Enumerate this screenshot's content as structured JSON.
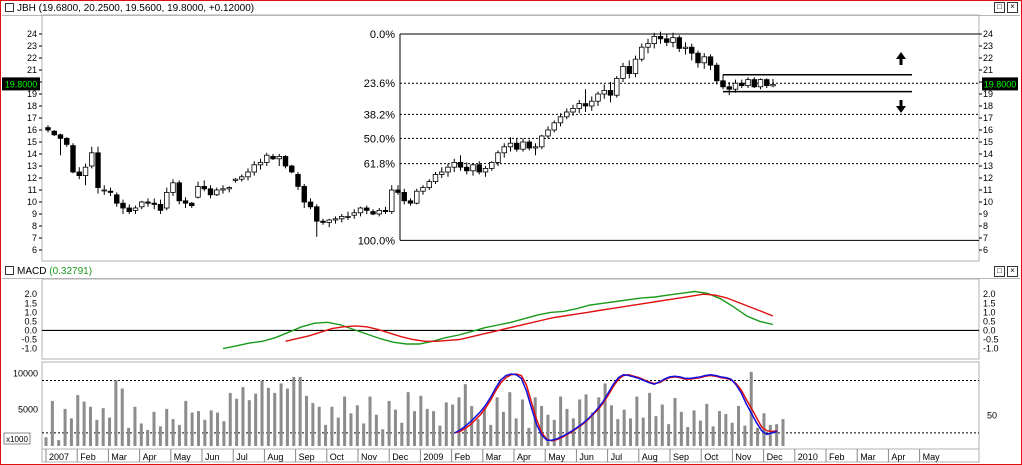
{
  "colors": {
    "frame": "#e01010",
    "macd": "#1a9a1a",
    "signal": "#e01010",
    "blue": "#1010e0",
    "volume": "#8c8c8c",
    "price_box": "#000000",
    "price_text": "#00ff00"
  },
  "price_panel": {
    "title": "JBH (19.6800, 20.2500, 19.5600, 19.8000, +0.12000)",
    "last_price": "19.8000"
  },
  "macd_panel": {
    "title": "MACD",
    "value": "(0.32791)"
  },
  "volume_panel": {
    "multiplier": "x1000"
  },
  "chart_data": [
    {
      "type": "candlestick",
      "name": "JBH",
      "ylim": [
        5.5,
        24.5
      ],
      "yticks": [
        6,
        7,
        8,
        9,
        10,
        11,
        12,
        13,
        14,
        15,
        16,
        17,
        18,
        19,
        20,
        21,
        22,
        23,
        24
      ],
      "x_months": [
        "2007",
        "Feb",
        "Mar",
        "Apr",
        "May",
        "Jun",
        "Jul",
        "Aug",
        "Sep",
        "Oct",
        "Nov",
        "Dec",
        "2009",
        "Feb",
        "Mar",
        "Apr",
        "May",
        "Jun",
        "Jul",
        "Aug",
        "Sep",
        "Oct",
        "Nov",
        "Dec",
        "2010",
        "Feb",
        "Mar",
        "Apr",
        "May"
      ],
      "candles": [
        [
          16.2,
          16.4,
          15.8,
          16.0
        ],
        [
          15.9,
          16.0,
          15.5,
          15.6
        ],
        [
          15.6,
          15.7,
          13.9,
          15.3
        ],
        [
          15.3,
          15.4,
          14.6,
          14.8
        ],
        [
          14.7,
          14.9,
          12.4,
          12.5
        ],
        [
          12.5,
          12.9,
          11.9,
          12.2
        ],
        [
          12.2,
          13.2,
          11.4,
          12.9
        ],
        [
          13.0,
          14.6,
          12.8,
          14.1
        ],
        [
          14.1,
          14.6,
          10.7,
          11.2
        ],
        [
          11.0,
          11.4,
          10.6,
          11.0
        ],
        [
          10.9,
          11.2,
          10.5,
          10.8
        ],
        [
          10.6,
          10.8,
          9.6,
          9.9
        ],
        [
          9.9,
          10.2,
          9.0,
          9.5
        ],
        [
          9.5,
          9.8,
          9.0,
          9.2
        ],
        [
          9.3,
          9.7,
          9.0,
          9.5
        ],
        [
          9.6,
          10.1,
          9.4,
          10.0
        ],
        [
          10.0,
          10.3,
          9.6,
          9.9
        ],
        [
          9.9,
          10.3,
          9.4,
          9.8
        ],
        [
          9.8,
          10.2,
          9.0,
          9.3
        ],
        [
          9.5,
          11.2,
          9.3,
          10.8
        ],
        [
          10.8,
          11.9,
          10.5,
          11.6
        ],
        [
          11.6,
          11.8,
          9.8,
          10.1
        ],
        [
          10.1,
          10.4,
          9.5,
          9.9
        ],
        [
          9.9,
          10.0,
          9.5,
          9.7
        ],
        [
          10.4,
          11.7,
          10.3,
          11.3
        ],
        [
          11.3,
          11.8,
          10.9,
          11.1
        ],
        [
          11.1,
          11.4,
          10.3,
          10.6
        ],
        [
          10.6,
          11.2,
          10.5,
          11.0
        ],
        [
          11.0,
          11.4,
          10.7,
          11.1
        ],
        [
          11.1,
          11.3,
          10.8,
          11.2
        ],
        [
          11.8,
          12.0,
          11.6,
          11.9
        ],
        [
          11.9,
          12.3,
          11.7,
          12.1
        ],
        [
          12.1,
          12.8,
          11.8,
          12.5
        ],
        [
          12.5,
          13.4,
          12.2,
          13.1
        ],
        [
          13.1,
          13.6,
          12.7,
          13.3
        ],
        [
          13.3,
          14.1,
          13.0,
          13.9
        ],
        [
          13.8,
          14.0,
          13.5,
          13.6
        ],
        [
          13.6,
          14.0,
          13.0,
          13.8
        ],
        [
          13.8,
          13.9,
          12.8,
          13.0
        ],
        [
          13.0,
          13.1,
          12.4,
          12.5
        ],
        [
          12.3,
          12.5,
          11.0,
          11.3
        ],
        [
          11.3,
          11.5,
          9.5,
          10.0
        ],
        [
          10.0,
          10.3,
          9.4,
          9.6
        ],
        [
          9.6,
          9.8,
          7.1,
          8.4
        ],
        [
          8.4,
          8.6,
          8.1,
          8.3
        ],
        [
          8.3,
          8.6,
          7.9,
          8.5
        ],
        [
          8.5,
          8.8,
          8.2,
          8.6
        ],
        [
          8.6,
          9.0,
          8.3,
          8.8
        ],
        [
          8.8,
          9.2,
          8.5,
          8.8
        ],
        [
          8.9,
          9.4,
          8.6,
          9.1
        ],
        [
          9.1,
          9.6,
          8.8,
          9.5
        ],
        [
          9.5,
          9.7,
          9.0,
          9.3
        ],
        [
          9.2,
          9.4,
          8.9,
          9.0
        ],
        [
          9.0,
          9.5,
          8.8,
          9.3
        ],
        [
          9.3,
          9.6,
          9.0,
          9.2
        ],
        [
          9.2,
          11.4,
          9.0,
          11.0
        ],
        [
          11.0,
          11.4,
          10.6,
          10.8
        ],
        [
          10.8,
          11.1,
          9.8,
          10.1
        ],
        [
          10.1,
          10.3,
          9.7,
          9.9
        ],
        [
          9.9,
          11.1,
          9.8,
          10.9
        ],
        [
          10.9,
          11.4,
          10.6,
          11.2
        ],
        [
          11.2,
          11.9,
          11.0,
          11.7
        ],
        [
          11.7,
          12.5,
          11.5,
          12.3
        ],
        [
          12.3,
          12.9,
          12.0,
          12.5
        ],
        [
          12.5,
          13.2,
          12.1,
          12.9
        ],
        [
          12.9,
          13.6,
          12.5,
          13.3
        ],
        [
          13.3,
          13.9,
          12.6,
          12.9
        ],
        [
          12.9,
          13.3,
          12.3,
          12.6
        ],
        [
          12.6,
          13.2,
          12.2,
          13.1
        ],
        [
          13.1,
          13.4,
          12.3,
          12.5
        ],
        [
          12.5,
          13.0,
          12.1,
          12.8
        ],
        [
          12.8,
          13.4,
          12.6,
          13.3
        ],
        [
          13.3,
          14.3,
          13.0,
          14.1
        ],
        [
          14.1,
          14.9,
          13.7,
          14.6
        ],
        [
          14.6,
          15.4,
          14.2,
          14.9
        ],
        [
          14.9,
          15.3,
          14.2,
          14.4
        ],
        [
          14.4,
          15.3,
          14.2,
          15.0
        ],
        [
          15.0,
          15.2,
          14.3,
          14.5
        ],
        [
          14.5,
          14.9,
          13.9,
          14.6
        ],
        [
          14.6,
          15.6,
          14.4,
          15.5
        ],
        [
          15.5,
          16.3,
          15.3,
          16.0
        ],
        [
          16.0,
          16.8,
          15.8,
          16.6
        ],
        [
          16.6,
          17.4,
          16.3,
          17.1
        ],
        [
          17.1,
          17.8,
          16.9,
          17.5
        ],
        [
          17.5,
          18.1,
          17.2,
          17.8
        ],
        [
          17.8,
          18.5,
          17.4,
          18.2
        ],
        [
          18.2,
          19.4,
          17.5,
          18.0
        ],
        [
          18.0,
          18.8,
          17.6,
          18.4
        ],
        [
          18.4,
          19.2,
          18.0,
          19.0
        ],
        [
          19.0,
          19.8,
          18.6,
          19.3
        ],
        [
          19.3,
          20.0,
          18.3,
          18.9
        ],
        [
          18.9,
          20.5,
          18.7,
          20.3
        ],
        [
          20.3,
          21.6,
          20.0,
          21.3
        ],
        [
          21.3,
          21.8,
          20.3,
          20.7
        ],
        [
          20.7,
          22.2,
          20.4,
          21.9
        ],
        [
          21.9,
          23.2,
          21.7,
          22.9
        ],
        [
          22.9,
          23.6,
          22.4,
          23.2
        ],
        [
          23.2,
          24.1,
          22.8,
          23.8
        ],
        [
          23.8,
          24.2,
          23.2,
          23.6
        ],
        [
          23.6,
          24.0,
          23.0,
          23.3
        ],
        [
          23.3,
          24.1,
          22.9,
          23.7
        ],
        [
          23.7,
          23.9,
          22.5,
          22.8
        ],
        [
          22.8,
          23.3,
          22.3,
          22.9
        ],
        [
          22.9,
          23.2,
          21.8,
          22.4
        ],
        [
          22.4,
          22.6,
          21.2,
          21.6
        ],
        [
          21.6,
          22.4,
          21.1,
          22.1
        ],
        [
          22.1,
          22.3,
          21.0,
          21.4
        ],
        [
          21.4,
          21.6,
          19.8,
          20.1
        ],
        [
          20.1,
          20.6,
          19.4,
          19.6
        ],
        [
          19.6,
          20.0,
          18.9,
          19.4
        ],
        [
          19.4,
          20.2,
          19.1,
          19.9
        ],
        [
          19.9,
          20.2,
          19.5,
          19.7
        ],
        [
          19.7,
          20.4,
          19.5,
          20.2
        ],
        [
          20.2,
          20.4,
          19.5,
          19.6
        ],
        [
          19.6,
          20.3,
          19.4,
          20.2
        ],
        [
          20.2,
          20.3,
          19.5,
          19.7
        ],
        [
          19.68,
          20.25,
          19.56,
          19.8
        ]
      ],
      "fib_levels": [
        {
          "label": "0.0%",
          "value": 24.0
        },
        {
          "label": "23.6%",
          "value": 19.9
        },
        {
          "label": "38.2%",
          "value": 17.3
        },
        {
          "label": "50.0%",
          "value": 15.3
        },
        {
          "label": "61.8%",
          "value": 13.2
        },
        {
          "label": "100.0%",
          "value": 6.8
        }
      ],
      "channel": {
        "upper": 20.6,
        "lower": 19.2
      }
    },
    {
      "type": "line",
      "name": "MACD",
      "ylim": [
        -1.3,
        2.4
      ],
      "yticks": [
        -1.0,
        -0.5,
        0.0,
        0.5,
        1.0,
        1.5,
        2.0
      ],
      "series": [
        {
          "name": "MACD",
          "color": "#1a9a1a",
          "values": [
            -1.0,
            -0.85,
            -0.7,
            -0.6,
            -0.4,
            -0.1,
            0.2,
            0.4,
            0.45,
            0.3,
            0.05,
            -0.2,
            -0.45,
            -0.65,
            -0.75,
            -0.75,
            -0.6,
            -0.4,
            -0.25,
            -0.05,
            0.15,
            0.3,
            0.45,
            0.65,
            0.85,
            1.0,
            1.05,
            1.2,
            1.4,
            1.5,
            1.6,
            1.7,
            1.8,
            1.85,
            1.95,
            2.05,
            2.15,
            2.05,
            1.75,
            1.3,
            0.8,
            0.5,
            0.33
          ],
          "start_index": 14
        },
        {
          "name": "Signal",
          "color": "#e01010",
          "values": [
            -0.6,
            -0.45,
            -0.3,
            -0.1,
            0.1,
            0.2,
            0.25,
            0.2,
            0.05,
            -0.15,
            -0.35,
            -0.5,
            -0.6,
            -0.6,
            -0.55,
            -0.5,
            -0.35,
            -0.2,
            -0.05,
            0.1,
            0.25,
            0.4,
            0.55,
            0.7,
            0.8,
            0.9,
            1.0,
            1.1,
            1.2,
            1.3,
            1.4,
            1.5,
            1.6,
            1.7,
            1.8,
            1.9,
            2.0,
            1.95,
            1.8,
            1.55,
            1.3,
            1.05,
            0.8
          ],
          "start_index": 19
        }
      ]
    },
    {
      "type": "bar",
      "name": "Volume",
      "ylim": [
        0,
        11000
      ],
      "yticks": [
        5000,
        10000
      ],
      "ytick_labels_right": [
        "50"
      ],
      "values": [
        1200,
        6200,
        800,
        5100,
        3800,
        7000,
        6100,
        5400,
        3600,
        5200,
        3900,
        9000,
        7900,
        2500,
        5400,
        3100,
        2200,
        4700,
        2700,
        5100,
        3700,
        2900,
        6200,
        4600,
        4800,
        3600,
        4900,
        4600,
        3400,
        7300,
        6500,
        8100,
        6300,
        7200,
        9000,
        8000,
        7300,
        8600,
        7900,
        9500,
        9500,
        6900,
        5900,
        5400,
        2900,
        5400,
        3900,
        6800,
        4500,
        5600,
        3100,
        6800,
        4300,
        2300,
        6200,
        5000,
        3200,
        7400,
        4800,
        6900,
        5100,
        4800,
        2800,
        6000,
        5700,
        6700,
        8500,
        5500,
        3700,
        5300,
        2900,
        6700,
        4700,
        7400,
        3800,
        6400,
        2500,
        6700,
        5500,
        4300,
        3600,
        6800,
        5100,
        3800,
        6400,
        7100,
        4600,
        6700,
        8600,
        5600,
        3700,
        5000,
        3800,
        6800,
        3900,
        7300,
        4100,
        5700,
        3000,
        6600,
        4700,
        2600,
        4900,
        3500,
        5800,
        2700,
        4800,
        4400,
        3200,
        5500,
        2800,
        10200,
        2500,
        4500,
        2900,
        3000,
        3700
      ],
      "series": [
        {
          "name": "Volume MA",
          "color": "#e01010",
          "values": [
            1800,
            2000,
            2400,
            2900,
            3600,
            4300,
            5200,
            6300,
            7600,
            8700,
            9400,
            9800,
            9900,
            9700,
            8400,
            6000,
            3600,
            1800,
            900,
            700,
            900,
            1200,
            1600,
            2000,
            2500,
            3000,
            3600,
            4300,
            5000,
            5900,
            7000,
            8200,
            9200,
            9700,
            9800,
            9600,
            9400,
            9100,
            8800,
            8600,
            8700,
            9100,
            9400,
            9500,
            9400,
            9200,
            9200,
            9300,
            9400,
            9600,
            9700,
            9600,
            9400,
            9300,
            9100,
            8600,
            7700,
            6400,
            5200,
            3900,
            2600,
            2100,
            2000,
            2100
          ],
          "start_index": 45
        },
        {
          "name": "Volume MA 2",
          "color": "#1010e0",
          "values": [
            1800,
            2200,
            2700,
            3300,
            4000,
            4700,
            5600,
            6700,
            8000,
            9100,
            9700,
            9900,
            9800,
            9300,
            7600,
            5200,
            2900,
            1500,
            800,
            800,
            1000,
            1300,
            1700,
            2100,
            2600,
            3100,
            3700,
            4400,
            5200,
            6100,
            7300,
            8500,
            9400,
            9800,
            9700,
            9500,
            9300,
            9000,
            8700,
            8500,
            8800,
            9200,
            9500,
            9600,
            9500,
            9300,
            9300,
            9400,
            9500,
            9700,
            9800,
            9700,
            9500,
            9400,
            9200,
            8400,
            7300,
            5800,
            4500,
            3200,
            2100,
            1600,
            1800,
            2000
          ],
          "start_index": 45
        }
      ]
    }
  ]
}
